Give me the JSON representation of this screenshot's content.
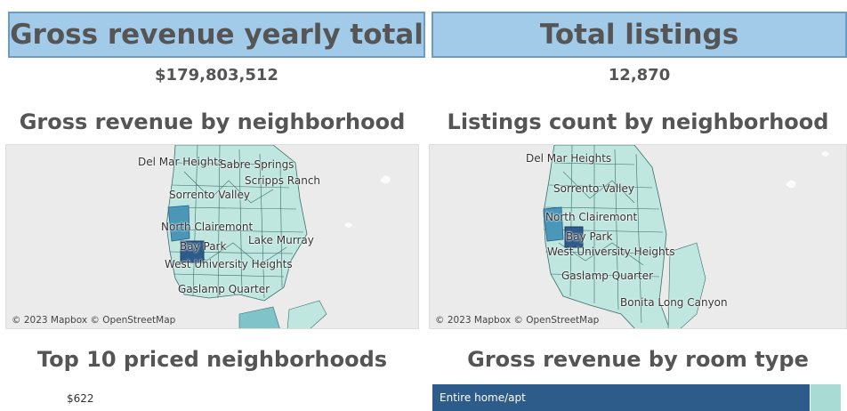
{
  "kpis": {
    "revenue": {
      "title": "Gross revenue yearly total",
      "value": "$179,803,512"
    },
    "listings": {
      "title": "Total listings",
      "value": "12,870"
    }
  },
  "maps": {
    "revenue_map": {
      "title": "Gross revenue by neighborhood",
      "labels": {
        "del_mar_heights": "Del Mar Heights",
        "sabre_springs": "Sabre Springs",
        "scripps_ranch": "Scripps Ranch",
        "sorrento_valley": "Sorrento Valley",
        "north_clairemont": "North Clairemont",
        "bay_park": "Bay Park",
        "lake_murray": "Lake Murray",
        "west_university_heights": "West University Heights",
        "gaslamp_quarter": "Gaslamp Quarter"
      },
      "attribution": "© 2023 Mapbox © OpenStreetMap"
    },
    "listings_map": {
      "title": "Listings count by neighborhood",
      "labels": {
        "del_mar_heights": "Del Mar Heights",
        "sorrento_valley": "Sorrento Valley",
        "north_clairemont": "North Clairemont",
        "bay_park": "Bay Park",
        "west_university_heights": "West University Heights",
        "gaslamp_quarter": "Gaslamp Quarter",
        "bonita_long_canyon": "Bonita Long Canyon"
      },
      "attribution": "© 2023 Mapbox © OpenStreetMap"
    }
  },
  "charts": {
    "top_priced": {
      "title": "Top 10 priced neighborhoods",
      "first_value": "$622"
    },
    "room_type": {
      "title": "Gross revenue by room type",
      "first_label": "Entire home/apt"
    }
  },
  "colors": {
    "banner_fill": "#a2cbea",
    "banner_border": "#6b9cc4",
    "map_land": "#bfe6df",
    "map_dark": "#2e5c8a",
    "map_mid": "#4b97b8",
    "room_bar": "#2e5c8a",
    "room_bar_secondary": "#a8dbd3"
  }
}
